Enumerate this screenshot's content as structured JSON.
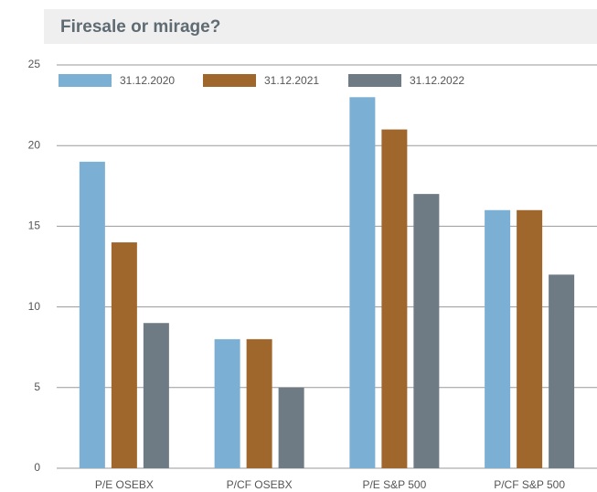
{
  "chart_data": {
    "type": "bar",
    "title": "Firesale or mirage?",
    "categories": [
      "P/E OSEBX",
      "P/CF OSEBX",
      "P/E S&P 500",
      "P/CF S&P 500"
    ],
    "series": [
      {
        "name": "31.12.2020",
        "color": "#7bafd4",
        "values": [
          19,
          8,
          23,
          16
        ]
      },
      {
        "name": "31.12.2021",
        "color": "#a0672d",
        "values": [
          14,
          8,
          21,
          16
        ]
      },
      {
        "name": "31.12.2022",
        "color": "#6e7a84",
        "values": [
          9,
          5,
          17,
          12
        ]
      }
    ],
    "ylim": [
      0,
      25
    ],
    "yticks": [
      0,
      5,
      10,
      15,
      20,
      25
    ],
    "grid": true,
    "legend": "top-left"
  }
}
